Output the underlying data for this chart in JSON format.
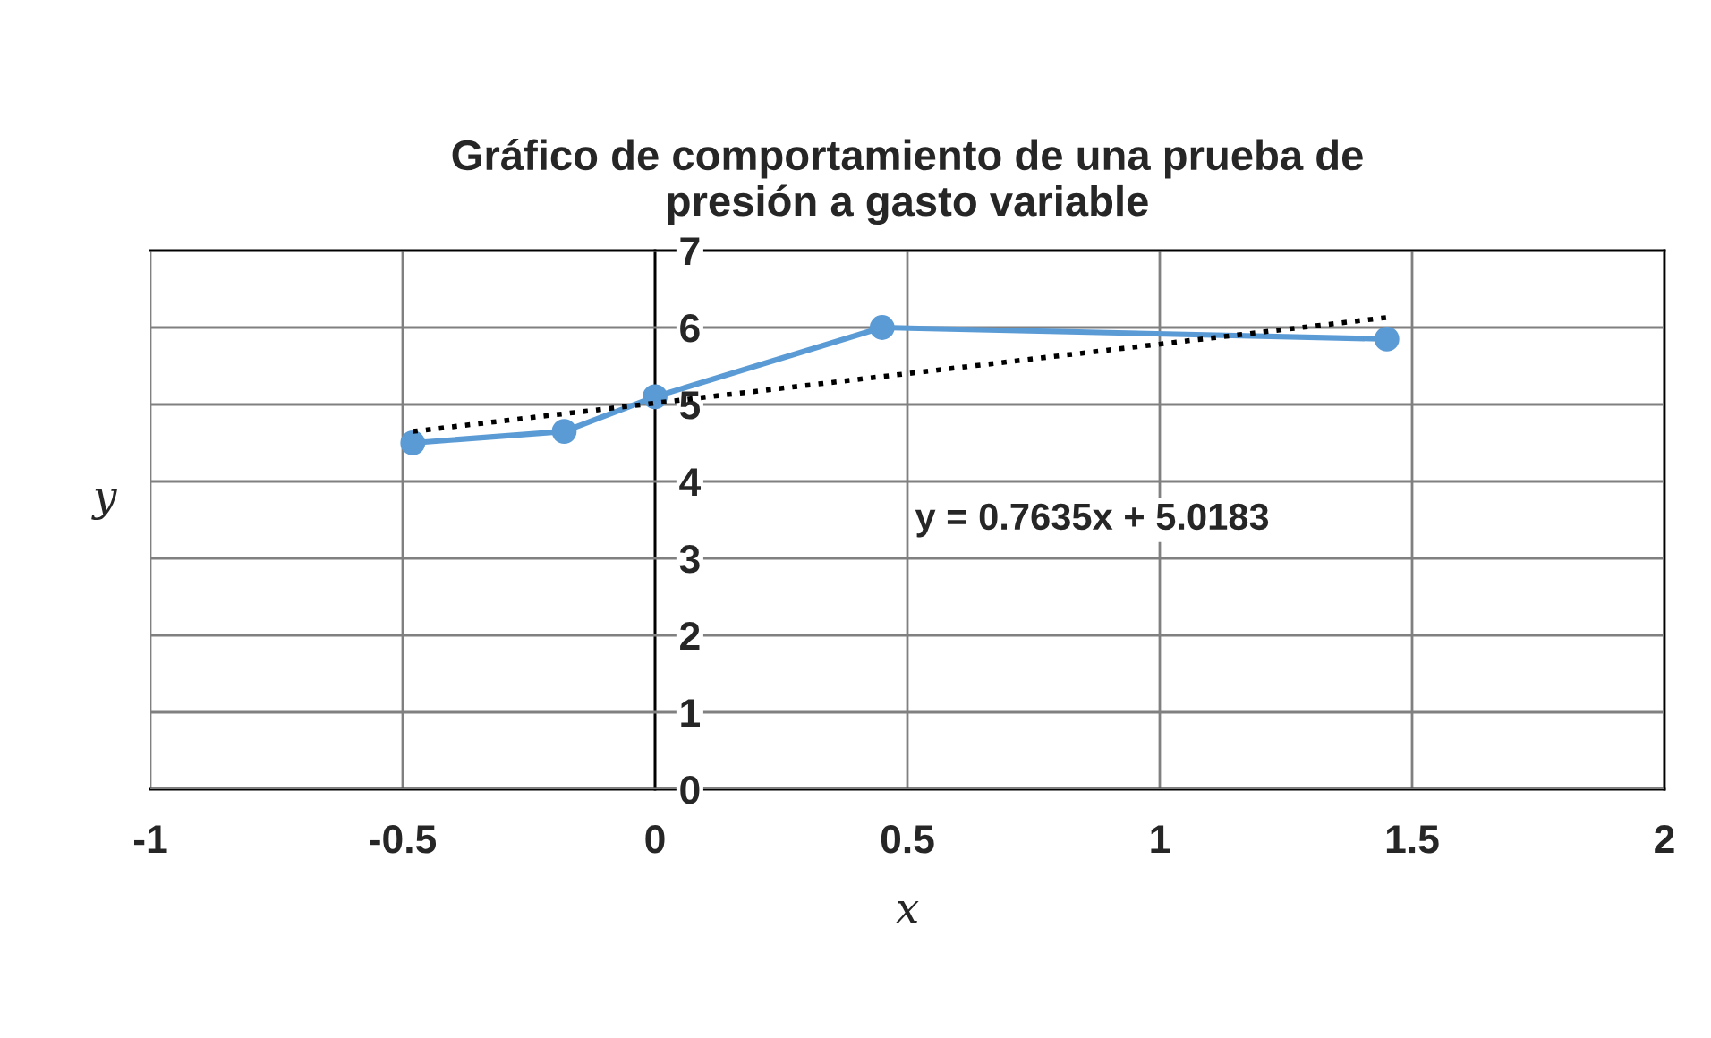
{
  "chart_data": {
    "type": "line",
    "title": "Gráfico de comportamiento de una prueba de\npresión a gasto variable",
    "xlabel": "x",
    "ylabel": "y",
    "series": [
      {
        "color": "#5b9bd5",
        "x": [
          -0.48,
          -0.18,
          0,
          0.45,
          1.45
        ],
        "values": [
          4.5,
          4.65,
          5.1,
          6.0,
          5.85
        ],
        "marker": "circle",
        "line_style": "solid"
      },
      {
        "color": "#000000",
        "x": [
          -0.48,
          1.45
        ],
        "values": [
          4.65,
          6.13
        ],
        "marker": "none",
        "line_style": "dotted"
      }
    ],
    "annotations": [
      "y = 0.7635x + 5.0183"
    ],
    "xlim": [
      -1,
      2
    ],
    "xticks": [
      -1,
      -0.5,
      0,
      0.5,
      1,
      1.5,
      2
    ],
    "ylim": [
      0,
      7
    ],
    "yticks": [
      0,
      1,
      2,
      3,
      4,
      5,
      6,
      7
    ],
    "grid": true
  }
}
